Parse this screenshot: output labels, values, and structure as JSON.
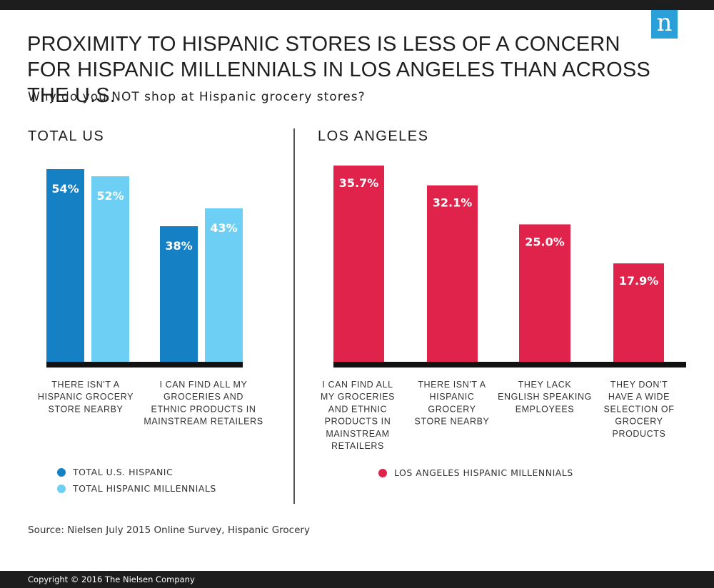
{
  "title": "PROXIMITY TO HISPANIC STORES IS LESS OF A CONCERN FOR HISPANIC MILLENNIALS IN LOS ANGELES THAN ACROSS THE U.S.",
  "subtitle": "Why do you NOT shop at Hispanic grocery stores?",
  "logo_letter": "n",
  "source": "Source: Nielsen July 2015 Online Survey, Hispanic Grocery",
  "copyright": "Copyright © 2016 The Nielsen Company",
  "colors": {
    "total_us_hispanic": "#1680c4",
    "total_hispanic_millennials": "#6ccff3",
    "la_hispanic_millennials": "#e0234a",
    "baseline": "#111111"
  },
  "chart_data": [
    {
      "type": "bar",
      "title": "TOTAL US",
      "categories": [
        [
          "THERE ISN'T A",
          "HISPANIC GROCERY",
          "STORE NEARBY"
        ],
        [
          "I CAN FIND ALL MY",
          "GROCERIES AND",
          "ETHNIC PRODUCTS IN",
          "MAINSTREAM RETAILERS"
        ]
      ],
      "series": [
        {
          "name": "TOTAL U.S. HISPANIC",
          "values": [
            54,
            38
          ],
          "labels": [
            "54%",
            "38%"
          ]
        },
        {
          "name": "TOTAL HISPANIC MILLENNIALS",
          "values": [
            52,
            43
          ],
          "labels": [
            "52%",
            "43%"
          ]
        }
      ],
      "legend": "bottom-left",
      "grid": false
    },
    {
      "type": "bar",
      "title": "LOS ANGELES",
      "categories": [
        [
          "I CAN FIND ALL",
          "MY GROCERIES",
          "AND ETHNIC",
          "PRODUCTS IN",
          "MAINSTREAM",
          "RETAILERS"
        ],
        [
          "THERE ISN'T A",
          "HISPANIC",
          "GROCERY",
          "STORE NEARBY"
        ],
        [
          "THEY LACK",
          "ENGLISH SPEAKING",
          "EMPLOYEES"
        ],
        [
          "THEY DON'T",
          "HAVE A WIDE",
          "SELECTION OF",
          "GROCERY",
          "PRODUCTS"
        ]
      ],
      "series": [
        {
          "name": "LOS ANGELES HISPANIC MILLENNIALS",
          "values": [
            35.7,
            32.1,
            25.0,
            17.9
          ],
          "labels": [
            "35.7%",
            "32.1%",
            "25.0%",
            "17.9%"
          ]
        }
      ],
      "legend": "bottom-left",
      "grid": false
    }
  ]
}
